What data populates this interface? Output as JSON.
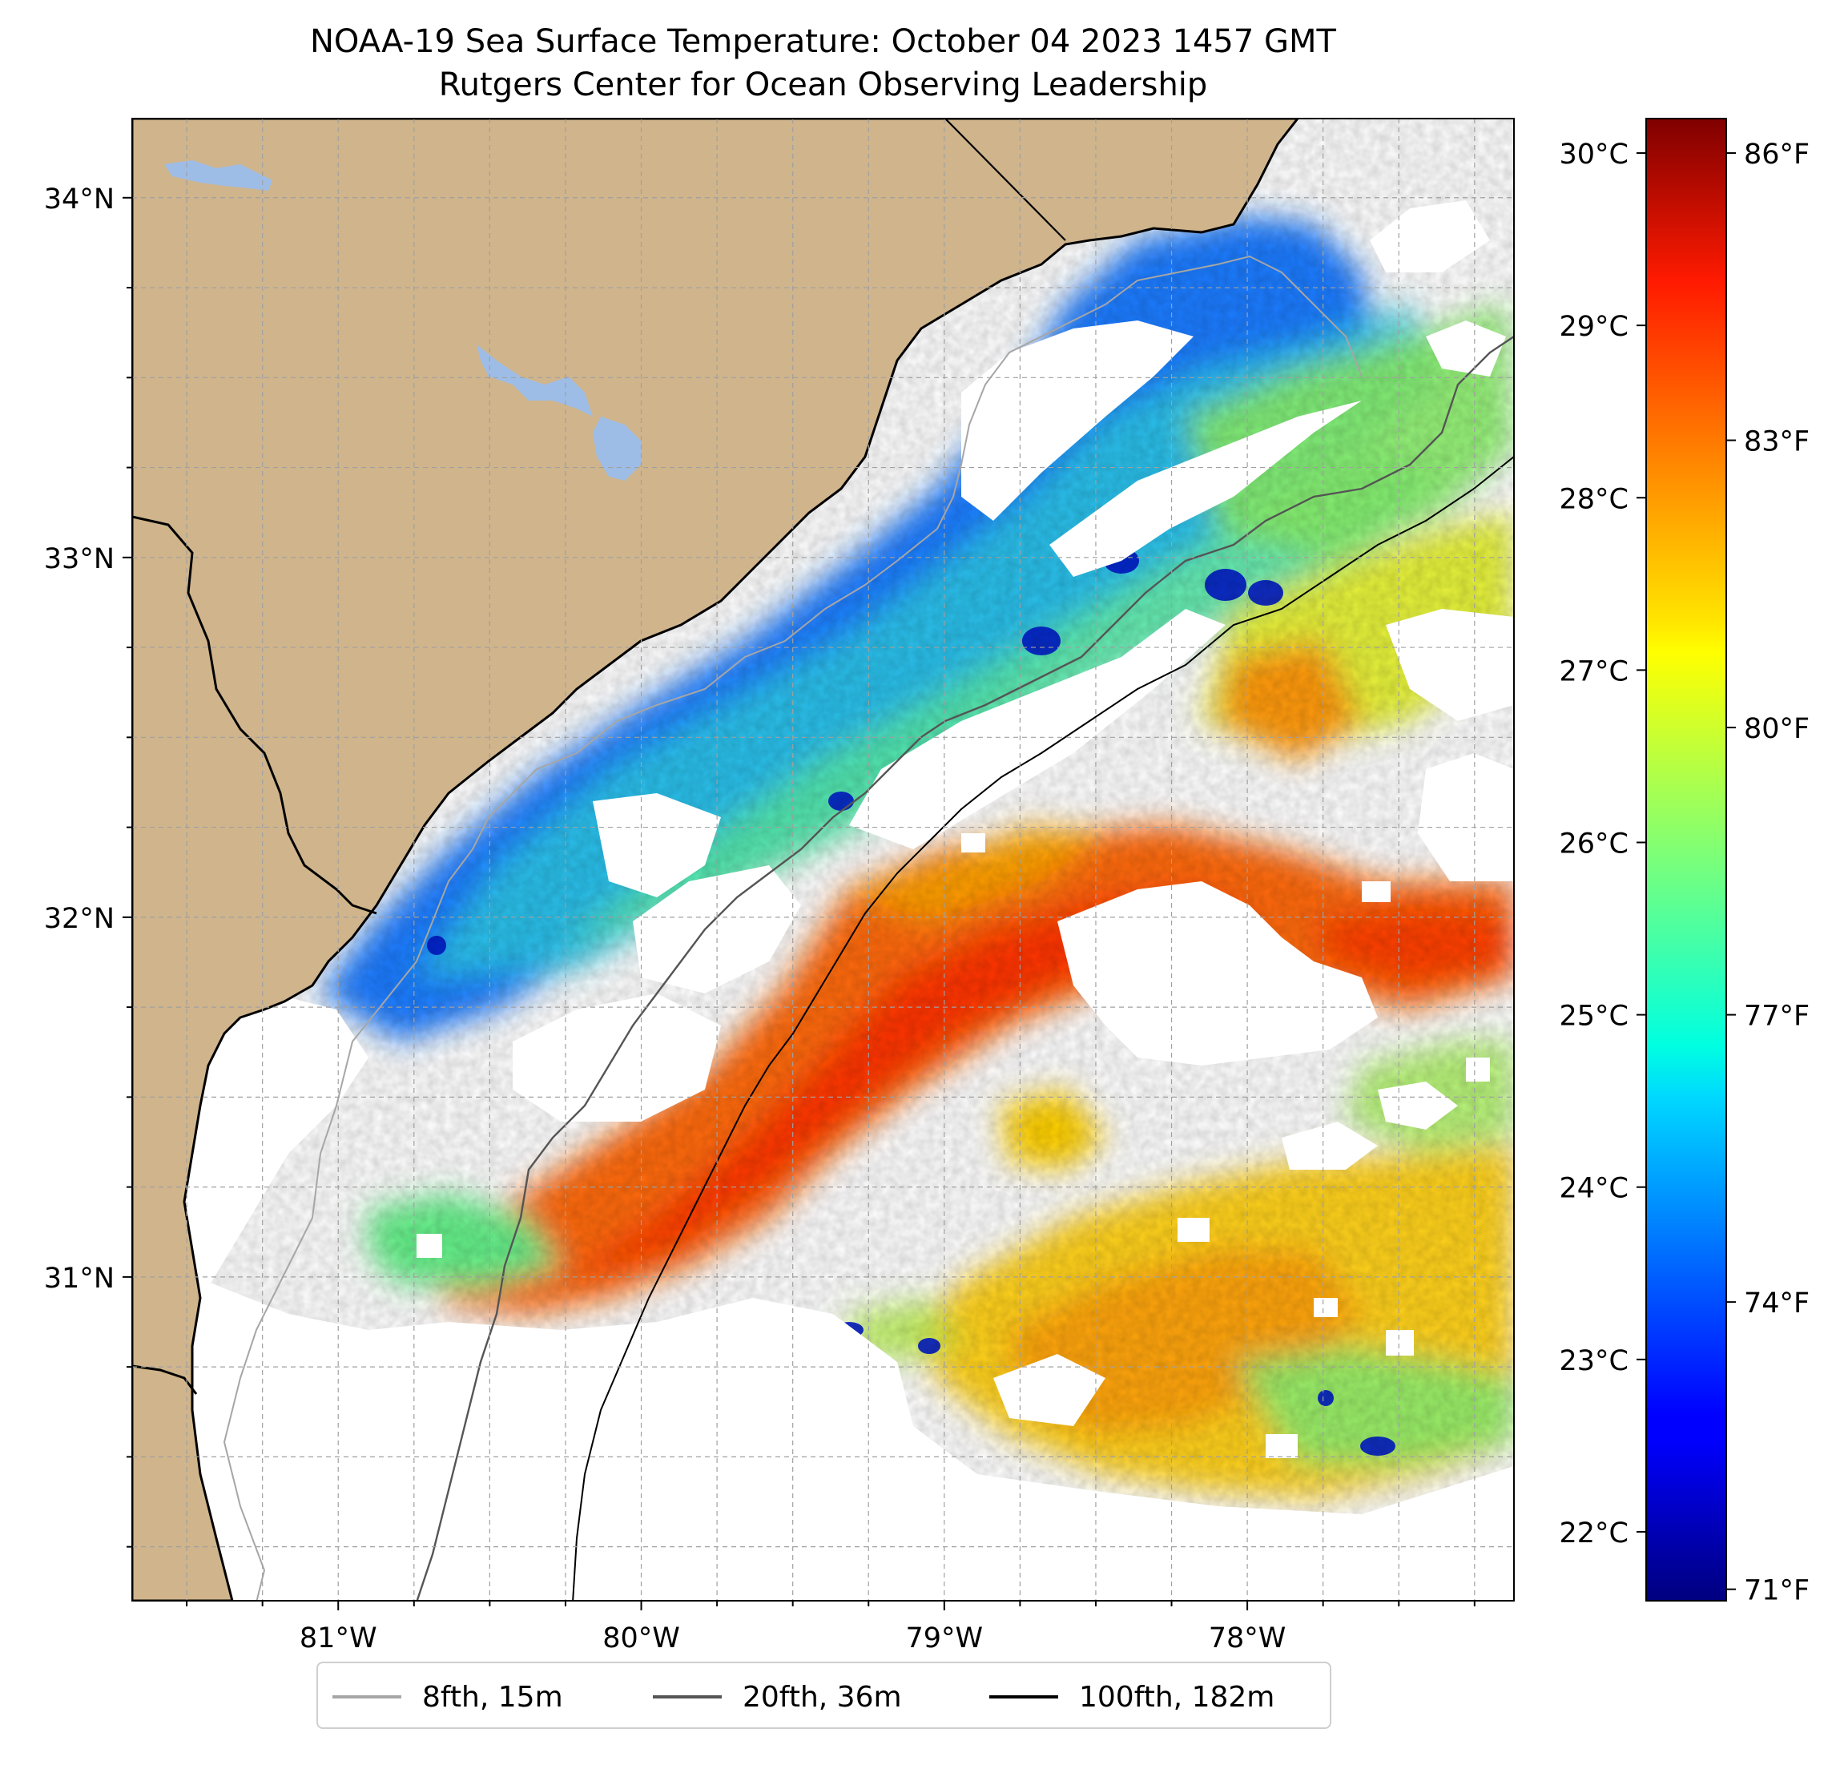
{
  "title": {
    "line1": "NOAA-19 Sea Surface Temperature: October 04 2023 1457 GMT",
    "line2": "Rutgers Center for Ocean Observing Leadership"
  },
  "map": {
    "lat_range": [
      30.1,
      34.22
    ],
    "lon_range": [
      -81.68,
      -77.12
    ],
    "lat_ticks": [
      {
        "value": 34,
        "label": "34°N"
      },
      {
        "value": 33,
        "label": "33°N"
      },
      {
        "value": 32,
        "label": "32°N"
      },
      {
        "value": 31,
        "label": "31°N"
      }
    ],
    "lon_ticks": [
      {
        "value": -81,
        "label": "81°W"
      },
      {
        "value": -80,
        "label": "80°W"
      },
      {
        "value": -79,
        "label": "79°W"
      },
      {
        "value": -78,
        "label": "78°W"
      }
    ],
    "grid_step_deg": 0.25,
    "colors": {
      "land": "#cfb48c",
      "lake": "#9ebde6",
      "coastline": "#000000",
      "grid": "#a0a0a0",
      "cloud_mask": "#ffffff"
    }
  },
  "colorbar": {
    "colormap": "jet",
    "celsius_range": [
      21.6,
      30.2
    ],
    "celsius_ticks": [
      {
        "value": 30,
        "label": "30°C"
      },
      {
        "value": 29,
        "label": "29°C"
      },
      {
        "value": 28,
        "label": "28°C"
      },
      {
        "value": 27,
        "label": "27°C"
      },
      {
        "value": 26,
        "label": "26°C"
      },
      {
        "value": 25,
        "label": "25°C"
      },
      {
        "value": 24,
        "label": "24°C"
      },
      {
        "value": 23,
        "label": "23°C"
      },
      {
        "value": 22,
        "label": "22°C"
      }
    ],
    "fahrenheit_ticks": [
      {
        "value": 86,
        "label": "86°F"
      },
      {
        "value": 83,
        "label": "83°F"
      },
      {
        "value": 80,
        "label": "80°F"
      },
      {
        "value": 77,
        "label": "77°F"
      },
      {
        "value": 74,
        "label": "74°F"
      },
      {
        "value": 71,
        "label": "71°F"
      }
    ]
  },
  "legend": {
    "items": [
      {
        "label": "8fth, 15m",
        "color": "#a6a6a6"
      },
      {
        "label": "20fth, 36m",
        "color": "#555555"
      },
      {
        "label": "100fth, 182m",
        "color": "#000000"
      }
    ]
  }
}
